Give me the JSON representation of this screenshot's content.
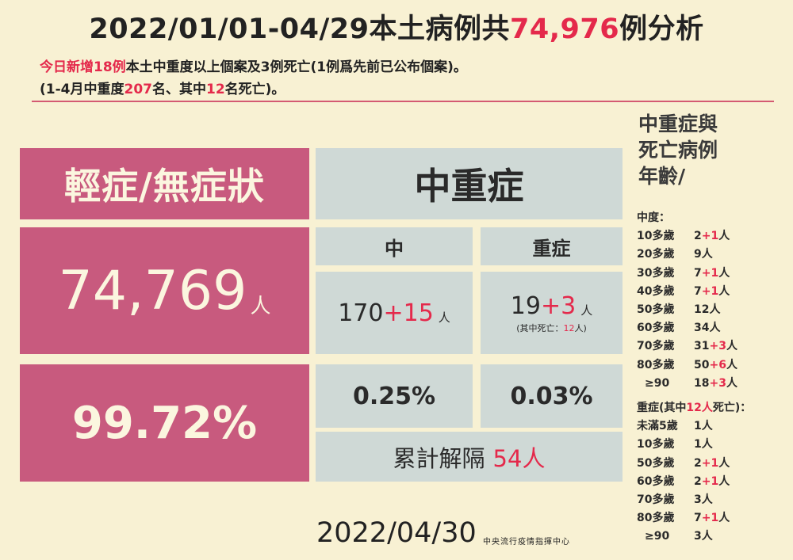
{
  "title": {
    "prefix": "2022/01/01-04/29本土病例共",
    "highlight": "74,976",
    "suffix": "例分析"
  },
  "subtitle1": {
    "highlight": "今日新增18例",
    "rest": "本土中重度以上個案及3例死亡(1例爲先前已公布個案)。"
  },
  "subtitle2": {
    "a": "(1-4月中重度",
    "b": "207",
    "c": "名、其中",
    "d": "12",
    "e": "名死亡)。"
  },
  "mild": {
    "header": "輕症/無症狀",
    "count": "74,769",
    "unit": "人",
    "percent": "99.72%"
  },
  "severe": {
    "header": "中重症",
    "moderate": {
      "label": "中",
      "base": "170",
      "added": "+15",
      "unit": "人",
      "percent": "0.25%"
    },
    "critical": {
      "label": "重症",
      "base": "19",
      "added": "+3",
      "unit": "人",
      "death_prefix": "(其中死亡：",
      "death_count": "12",
      "death_suffix": "人)",
      "percent": "0.03%"
    },
    "released": {
      "label": "累計解隔",
      "count": "54人"
    }
  },
  "side": {
    "title_lines": [
      "中重症與",
      "死亡病例",
      "年齡/"
    ],
    "moderate_heading": "中度：",
    "moderate_rows": [
      {
        "age": "10多歲",
        "base": "2",
        "added": "+1",
        "unit": "人"
      },
      {
        "age": "20多歲",
        "base": "9",
        "added": "",
        "unit": "人"
      },
      {
        "age": "30多歲",
        "base": "7",
        "added": "+1",
        "unit": "人"
      },
      {
        "age": "40多歲",
        "base": "7",
        "added": "+1",
        "unit": "人"
      },
      {
        "age": "50多歲",
        "base": "12",
        "added": "",
        "unit": "人"
      },
      {
        "age": "60多歲",
        "base": "34",
        "added": "",
        "unit": "人"
      },
      {
        "age": "70多歲",
        "base": "31",
        "added": "+3",
        "unit": "人"
      },
      {
        "age": "80多歲",
        "base": "50",
        "added": "+6",
        "unit": "人"
      },
      {
        "age": "≥90",
        "base": "18",
        "added": "+3",
        "unit": "人"
      }
    ],
    "critical_heading": {
      "a": "重症(其中",
      "b": "12人",
      "c": "死亡)："
    },
    "critical_rows": [
      {
        "age": "未滿5歲",
        "base": "1",
        "added": "",
        "unit": "人"
      },
      {
        "age": "10多歲",
        "base": "1",
        "added": "",
        "unit": "人"
      },
      {
        "age": "50多歲",
        "base": "2",
        "added": "+1",
        "unit": "人"
      },
      {
        "age": "60多歲",
        "base": "2",
        "added": "+1",
        "unit": "人"
      },
      {
        "age": "70多歲",
        "base": "3",
        "added": "",
        "unit": "人"
      },
      {
        "age": "80多歲",
        "base": "7",
        "added": "+1",
        "unit": "人"
      },
      {
        "age": "≥90",
        "base": "3",
        "added": "",
        "unit": "人"
      }
    ]
  },
  "footer": {
    "date": "2022/04/30",
    "org": "中央流行疫情指揮中心"
  },
  "colors": {
    "background": "#f8f1d3",
    "pink": "#c85a7e",
    "grey": "#cfd9d6",
    "highlight": "#e4294b"
  }
}
